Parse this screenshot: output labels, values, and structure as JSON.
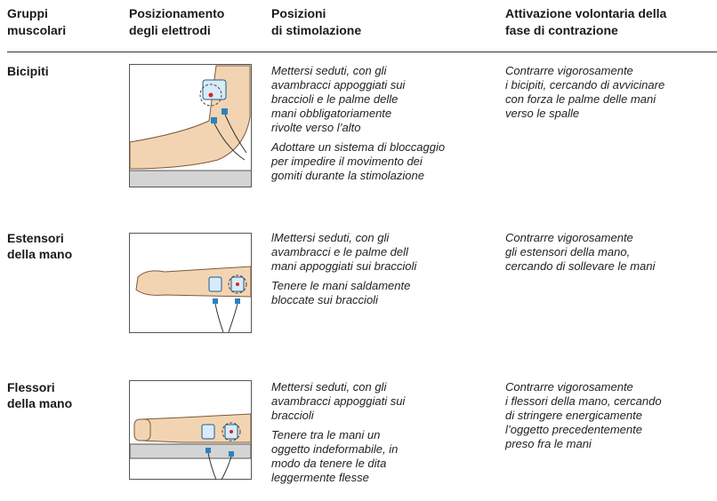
{
  "table": {
    "header": [
      [
        "Gruppi",
        "muscolari"
      ],
      [
        "Posizionamento",
        "degli elettrodi"
      ],
      [
        "Posizioni",
        "di stimolazione"
      ],
      [
        "Attivazione volontaria della",
        "fase di contrazione"
      ]
    ],
    "rows": [
      {
        "group": [
          "Bicipiti"
        ],
        "positions": [
          [
            "Mettersi seduti, con gli",
            "avambracci appoggiati sui",
            "braccioli e le palme delle",
            "mani obbligatoriamente",
            "rivolte verso l’alto"
          ],
          [
            "Adottare un sistema di bloccaggio",
            "per impedire il movimento dei",
            "gomiti durante la stimolazione"
          ]
        ],
        "activation": [
          "Contrarre vigorosamente",
          "i bicipiti, cercando di avvicinare",
          "con forza le palme delle mani",
          "verso le spalle"
        ]
      },
      {
        "group": [
          "Estensori",
          "della mano"
        ],
        "positions": [
          [
            "lMettersi seduti, con gli",
            "avambracci e le palme dell",
            "mani appoggiati sui braccioli"
          ],
          [
            "Tenere le mani saldamente",
            "bloccate sui braccioli"
          ]
        ],
        "activation": [
          "Contrarre vigorosamente",
          "gli estensori della mano,",
          "cercando di sollevare le mani"
        ]
      },
      {
        "group": [
          "Flessori",
          "della mano"
        ],
        "positions": [
          [
            "Mettersi seduti, con gli",
            "avambracci appoggiati sui",
            "braccioli"
          ],
          [
            "Tenere tra le mani un",
            "oggetto indeformabile, in",
            "modo da tenere le dita",
            "leggermente flesse"
          ]
        ],
        "activation": [
          "Contrarre vigorosamente",
          "i flessori della mano, cercando",
          "di stringere energicamente",
          "l’oggetto precedentemente",
          "preso fra le mani"
        ]
      }
    ]
  }
}
